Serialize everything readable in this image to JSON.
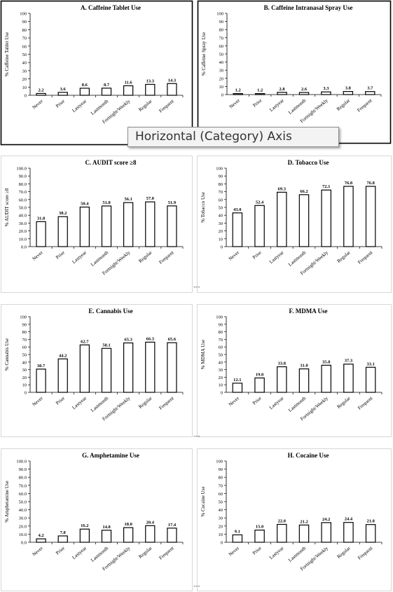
{
  "tooltip": "Horizontal (Category) Axis",
  "chart_data": [
    {
      "type": "bar",
      "title": "A. Caffeine Tablet Use",
      "ylabel": "% Caffeine Tablet Use",
      "ylim": [
        0,
        100
      ],
      "ytick_step": 10,
      "ytick_decimals": 0,
      "categories": [
        "Never",
        "Prior",
        "Lastyear",
        "Lastmonth",
        "Fortnight/Weekly",
        "Regular",
        "Frequent"
      ],
      "values": [
        2.2,
        3.6,
        8.6,
        8.7,
        11.6,
        13.3,
        14.3
      ],
      "labels": [
        "2.2",
        "3.6",
        "8.6",
        "8.7",
        "11.6",
        "13.3",
        "14.3"
      ]
    },
    {
      "type": "bar",
      "title": "B. Caffeine Intranasal Spray Use",
      "ylabel": "% Caffeine Spray Use",
      "ylim": [
        0,
        100
      ],
      "ytick_step": 10,
      "ytick_decimals": 0,
      "categories": [
        "Never",
        "Prior",
        "Lastyear",
        "Lastmonth",
        "Fortnight/Weekly",
        "Regular",
        "Frequent"
      ],
      "values": [
        1.2,
        1.2,
        2.8,
        2.6,
        3.3,
        3.8,
        3.7
      ],
      "labels": [
        "1.2",
        "1.2",
        "2.8",
        "2.6",
        "3.3",
        "3.8",
        "3.7"
      ]
    },
    {
      "type": "bar",
      "title": "C. AUDIT score ≥8",
      "ylabel": "% AUDIT score ≥8",
      "ylim": [
        0,
        100
      ],
      "ytick_step": 10,
      "ytick_decimals": 1,
      "categories": [
        "Never",
        "Prior",
        "Lastyear",
        "Lastmonth",
        "Fortnight/Weekly",
        "Regular",
        "Frequent"
      ],
      "values": [
        31.8,
        38.2,
        50.4,
        51.8,
        56.1,
        57.0,
        51.9
      ],
      "labels": [
        "31.8",
        "38.2",
        "50.4",
        "51.8",
        "56.1",
        "57.0",
        "51.9"
      ]
    },
    {
      "type": "bar",
      "title": "D. Tobacco Use",
      "ylabel": "% Tobacco Use",
      "ylim": [
        0,
        100
      ],
      "ytick_step": 10,
      "ytick_decimals": 0,
      "categories": [
        "Never",
        "Prior",
        "Lastyear",
        "Lastmonth",
        "Fortnight/Weekly",
        "Regular",
        "Frequent"
      ],
      "values": [
        43.0,
        52.4,
        69.3,
        66.2,
        72.1,
        76.8,
        76.8
      ],
      "labels": [
        "43.0",
        "52.4",
        "69.3",
        "66.2",
        "72.1",
        "76.8",
        "76.8"
      ]
    },
    {
      "type": "bar",
      "title": "E. Cannabis Use",
      "ylabel": "% Cannabis Use",
      "ylim": [
        0,
        100
      ],
      "ytick_step": 10,
      "ytick_decimals": 0,
      "categories": [
        "Never",
        "Prior",
        "Lastyear",
        "Lastmonth",
        "Fortnight/Weekly",
        "Regular",
        "Frequent"
      ],
      "values": [
        30.7,
        44.2,
        62.7,
        58.1,
        65.3,
        66.3,
        65.6
      ],
      "labels": [
        "30.7",
        "44.2",
        "62.7",
        "58.1",
        "65.3",
        "66.3",
        "65.6"
      ]
    },
    {
      "type": "bar",
      "title": "F. MDMA Use",
      "ylabel": "% MDMA Use",
      "ylim": [
        0,
        100
      ],
      "ytick_step": 10,
      "ytick_decimals": 0,
      "categories": [
        "Never",
        "Prior",
        "Lastyear",
        "Lastmonth",
        "Fortnight/Weekly",
        "Regular",
        "Frequent"
      ],
      "values": [
        12.1,
        19.0,
        33.8,
        31.0,
        35.8,
        37.3,
        33.1
      ],
      "labels": [
        "12.1",
        "19.0",
        "33.8",
        "31.0",
        "35.8",
        "37.3",
        "33.1"
      ]
    },
    {
      "type": "bar",
      "title": "G. Amphetamine Use",
      "ylabel": "% Amphetamine Use",
      "ylim": [
        0,
        100
      ],
      "ytick_step": 10,
      "ytick_decimals": 1,
      "categories": [
        "Never",
        "Prior",
        "Lastyear",
        "Lastmonth",
        "Fortnight/Weekly",
        "Regular",
        "Frequent"
      ],
      "values": [
        4.2,
        7.8,
        16.2,
        14.8,
        18.0,
        20.4,
        17.4
      ],
      "labels": [
        "4.2",
        "7.8",
        "16.2",
        "14.8",
        "18.0",
        "20.4",
        "17.4"
      ]
    },
    {
      "type": "bar",
      "title": "H. Cocaine Use",
      "ylabel": "% Cocaine Use",
      "ylim": [
        0,
        100
      ],
      "ytick_step": 10,
      "ytick_decimals": 0,
      "categories": [
        "Never",
        "Prior",
        "Lastyear",
        "Lastmonth",
        "Fortnight/Weekly",
        "Regular",
        "Frequent"
      ],
      "values": [
        9.1,
        15.0,
        22.0,
        21.2,
        24.2,
        24.4,
        21.8
      ],
      "labels": [
        "9.1",
        "15.0",
        "22.0",
        "21.2",
        "24.2",
        "24.4",
        "21.8"
      ]
    }
  ]
}
